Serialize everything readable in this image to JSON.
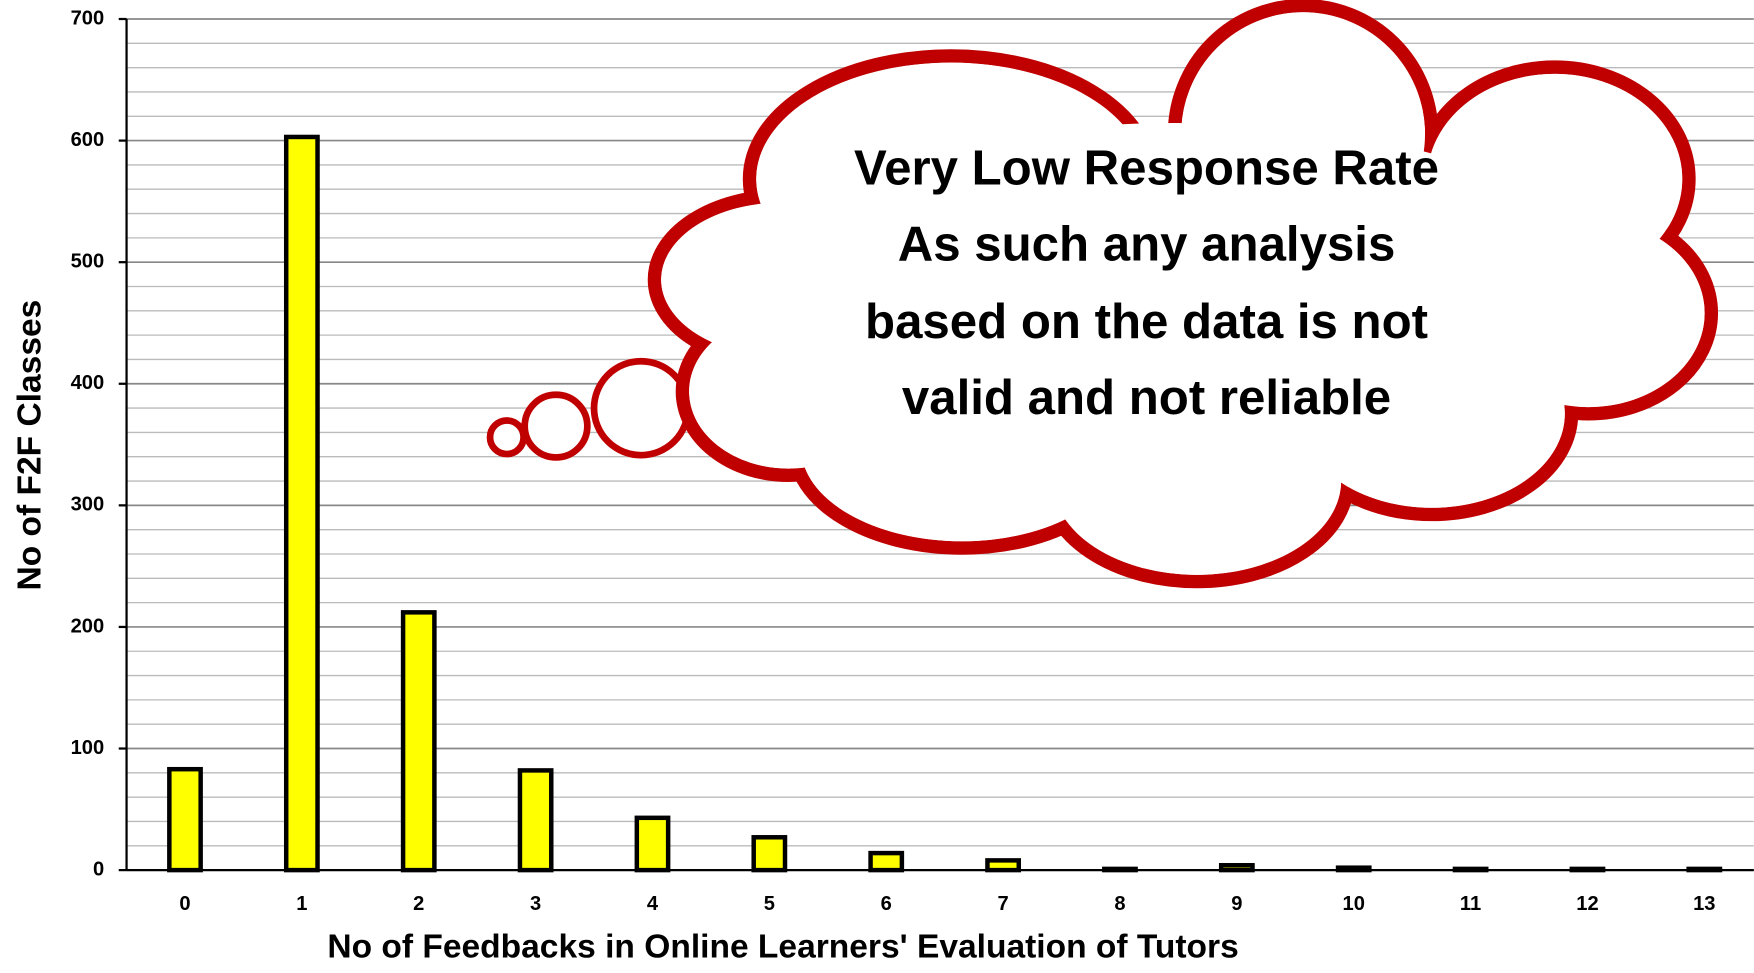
{
  "chart_data": {
    "type": "bar",
    "x_label": "No of Feedbacks in Online Learners' Evaluation of Tutors",
    "y_label": "No of  F2F Classes",
    "categories": [
      "0",
      "1",
      "2",
      "3",
      "4",
      "5",
      "6",
      "7",
      "8",
      "9",
      "10",
      "11",
      "12",
      "13"
    ],
    "values": [
      83,
      603,
      212,
      82,
      43,
      27,
      14,
      8,
      1,
      4,
      2,
      1,
      1,
      1
    ],
    "color": "#ffff00",
    "ylim": [
      0,
      700
    ],
    "yticks": [
      0,
      100,
      200,
      300,
      400,
      500,
      600,
      700
    ],
    "minor_yticks": [
      20,
      40,
      60,
      80,
      120,
      140,
      160,
      180,
      220,
      240,
      260,
      280,
      320,
      340,
      360,
      380,
      420,
      440,
      460,
      480,
      520,
      540,
      560,
      580,
      620,
      640,
      660,
      680
    ],
    "grid": true,
    "annotation": [
      "Very Low Response Rate",
      "As such any analysis",
      "based on the data is not",
      "valid and not reliable"
    ]
  }
}
